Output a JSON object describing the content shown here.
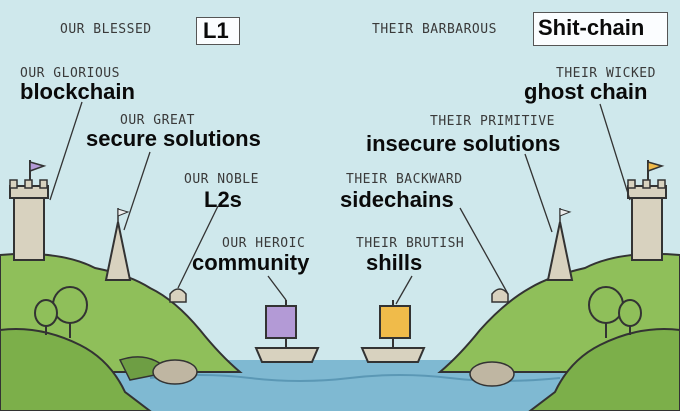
{
  "panel": {
    "left_header_prefix": "OUR BLESSED",
    "left_header_word": "L1",
    "right_header_prefix": "THEIR BARBAROUS",
    "right_header_word": "Shit-chain"
  },
  "left_labels": [
    {
      "caption": "OUR GLORIOUS",
      "word": "blockchain"
    },
    {
      "caption": "OUR GREAT",
      "word": "secure solutions"
    },
    {
      "caption": "OUR NOBLE",
      "word": "L2s"
    },
    {
      "caption": "OUR HEROIC",
      "word": "community"
    }
  ],
  "right_labels": [
    {
      "caption": "THEIR WICKED",
      "word": "ghost chain"
    },
    {
      "caption": "THEIR PRIMITIVE",
      "word": "insecure solutions"
    },
    {
      "caption": "THEIR BACKWARD",
      "word": "sidechains"
    },
    {
      "caption": "THEIR BRUTISH",
      "word": "shills"
    }
  ],
  "colors": {
    "sky": "#cfe8ec",
    "hill": "#8fbf5a",
    "hill_dark": "#6e9e44",
    "water": "#7fb9d2",
    "left_sail": "#b39ad6",
    "right_sail": "#f0bb4a",
    "stone": "#d8d2bf"
  },
  "icons": [
    "castle-tower-icon",
    "spire-icon",
    "hut-icon",
    "tree-icon",
    "boat-icon",
    "flag-icon"
  ]
}
